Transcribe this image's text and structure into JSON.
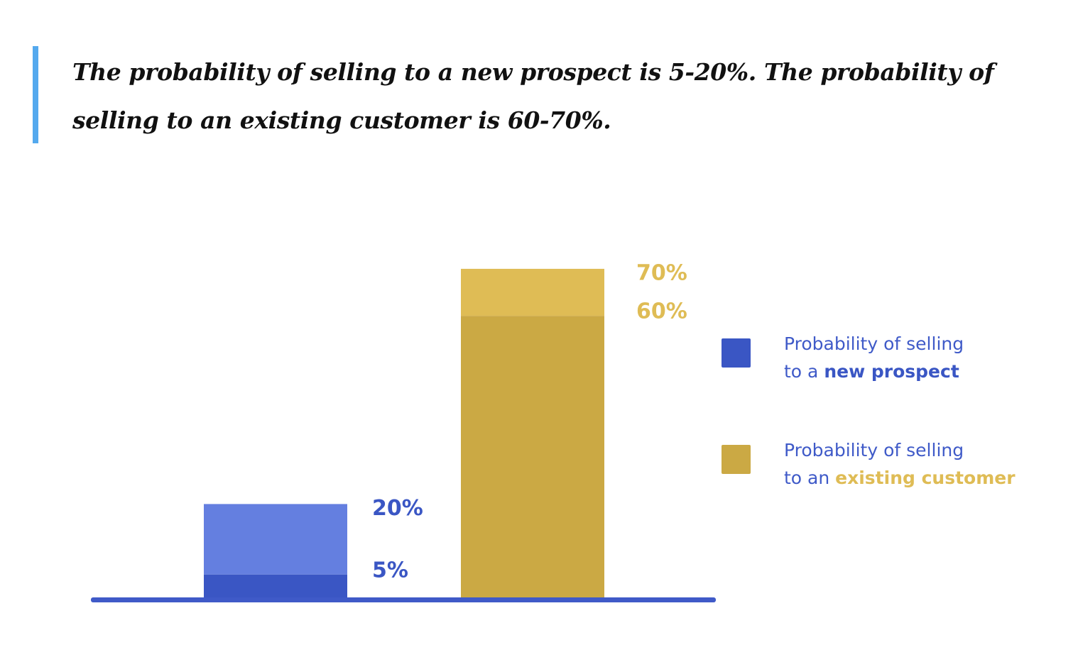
{
  "quote": {
    "text": "The probability of selling to a new prospect is 5-20%. The probability of selling to an existing customer is 60-70%."
  },
  "colors": {
    "quote_bar": "#54a9ee",
    "new_dark": "#3a56c4",
    "new_light": "#647fe0",
    "existing_dark": "#cba944",
    "existing_light": "#dfbc55",
    "baseline": "#3f5ac8",
    "legend_text": "#3f5ac8"
  },
  "chart_data": {
    "type": "bar",
    "ylim": [
      0,
      100
    ],
    "grid": false,
    "legend_position": "right",
    "categories": [
      "new prospect",
      "existing customer"
    ],
    "series": [
      {
        "name": "Probability of selling to a new prospect",
        "low": 5,
        "high": 20,
        "low_label": "5%",
        "high_label": "20%"
      },
      {
        "name": "Probability of selling to an existing customer",
        "low": 60,
        "high": 70,
        "low_label": "60%",
        "high_label": "70%"
      }
    ],
    "legend": [
      {
        "line1": "Probability of selling",
        "line2_prefix": "to a ",
        "line2_emphasis": "new prospect"
      },
      {
        "line1": "Probability of selling",
        "line2_prefix": "to an ",
        "line2_emphasis": "existing customer"
      }
    ]
  }
}
